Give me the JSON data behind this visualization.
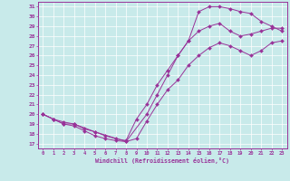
{
  "xlabel": "Windchill (Refroidissement éolien,°C)",
  "bg_color": "#c8eaea",
  "line_color": "#993399",
  "grid_color": "#aaaacc",
  "xlim": [
    -0.5,
    23.5
  ],
  "ylim": [
    16.5,
    31.5
  ],
  "xticks": [
    0,
    1,
    2,
    3,
    4,
    5,
    6,
    7,
    8,
    9,
    10,
    11,
    12,
    13,
    14,
    15,
    16,
    17,
    18,
    19,
    20,
    21,
    22,
    23
  ],
  "yticks": [
    17,
    18,
    19,
    20,
    21,
    22,
    23,
    24,
    25,
    26,
    27,
    28,
    29,
    30,
    31
  ],
  "line1_x": [
    0,
    1,
    2,
    3,
    4,
    5,
    6,
    7,
    8,
    9,
    10,
    11,
    12,
    13,
    14,
    15,
    16,
    17,
    18,
    19,
    20,
    21,
    22,
    23
  ],
  "line1_y": [
    20.0,
    19.5,
    19.0,
    18.8,
    18.3,
    17.8,
    17.5,
    17.3,
    17.2,
    17.5,
    19.3,
    21.0,
    22.5,
    23.5,
    25.0,
    26.0,
    26.8,
    27.3,
    27.0,
    26.5,
    26.0,
    26.5,
    27.3,
    27.5
  ],
  "line2_x": [
    0,
    1,
    2,
    3,
    4,
    5,
    6,
    7,
    8,
    9,
    10,
    11,
    12,
    13,
    14,
    15,
    16,
    17,
    18,
    19,
    20,
    21,
    22,
    23
  ],
  "line2_y": [
    20.0,
    19.5,
    19.2,
    19.0,
    18.5,
    18.2,
    17.8,
    17.5,
    17.3,
    19.5,
    21.0,
    23.0,
    24.5,
    26.0,
    27.5,
    28.5,
    29.0,
    29.3,
    28.5,
    28.0,
    28.2,
    28.5,
    28.8,
    28.8
  ],
  "line3_x": [
    0,
    1,
    2,
    3,
    5,
    8,
    10,
    11,
    12,
    13,
    14,
    15,
    16,
    17,
    18,
    19,
    20,
    21,
    22,
    23
  ],
  "line3_y": [
    20.0,
    19.5,
    19.0,
    19.0,
    18.2,
    17.2,
    20.0,
    22.0,
    24.0,
    26.0,
    27.5,
    30.5,
    31.0,
    31.0,
    30.8,
    30.5,
    30.3,
    29.5,
    29.0,
    28.5
  ]
}
